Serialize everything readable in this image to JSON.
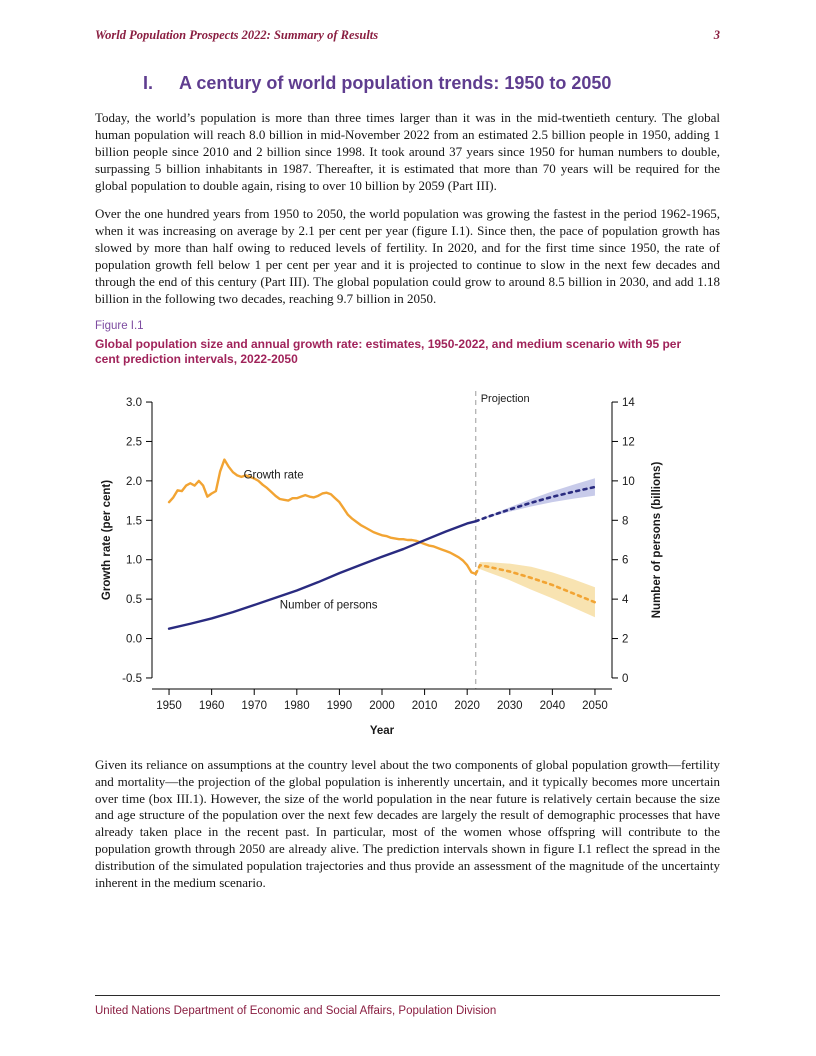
{
  "header": {
    "title": "World Population Prospects 2022: Summary of Results",
    "page_number": "3"
  },
  "section": {
    "number": "I.",
    "title": "A century of world population trends: 1950 to 2050"
  },
  "paragraphs": {
    "p1": "Today, the world’s population is more than three times larger than it was in the mid-twentieth century. The global human population will reach 8.0 billion in mid-November 2022 from an estimated 2.5 billion people in 1950, adding 1 billion people since 2010 and 2 billion since 1998. It took around 37 years since 1950 for human numbers to double, surpassing 5 billion inhabitants in 1987. Thereafter, it is estimated that more than 70 years will be required for the global population to double again, rising to over 10 billion by 2059 (Part III).",
    "p2": "Over the one hundred years from 1950 to 2050, the world population was growing the fastest in the period 1962-1965, when it was increasing on average by 2.1 per cent per year (figure I.1). Since then, the pace of population growth has slowed by more than half owing to reduced levels of fertility. In 2020, and for the first time since 1950, the rate of population growth fell below 1 per cent per year and it is projected to continue to slow in the next few decades and through the end of this century (Part III). The global population could grow to around 8.5 billion in 2030, and add 1.18 billion in the following two decades, reaching 9.7 billion in 2050.",
    "p3": "Given its reliance on assumptions at the country level about the two components of global population growth—fertility and mortality—the projection of the global population is inherently uncertain, and it typically becomes more uncertain over time (box III.1). However, the size of the world population in the near future is relatively certain because the size and age structure of the population over the next few decades are largely the result of demographic processes that have already taken place in the recent past. In particular, most of the women whose offspring will contribute to the population growth through 2050 are already alive. The prediction intervals shown in figure I.1 reflect the spread in the distribution of the simulated population trajectories and thus provide an assessment of the magnitude of the uncertainty inherent in the medium scenario."
  },
  "figure": {
    "label": "Figure I.1",
    "caption": "Global population size and annual growth rate: estimates, 1950-2022, and medium scenario with 95 per cent prediction intervals, 2022-2050"
  },
  "footer": {
    "text": "United Nations Department of Economic and Social Affairs, Population Division"
  },
  "colors": {
    "maroon_header": "#8A1E41",
    "purple_heading": "#5F3D8F",
    "figure_label_purple": "#7D4BA0",
    "figure_caption_red": "#A0235A",
    "growth_rate_orange": "#F2A433",
    "growth_band_orange": "#F7E0A9",
    "population_navy": "#2A2B80",
    "population_band_blue": "#C2C5E8",
    "projection_gray": "#9C9C9C"
  },
  "chart_data": {
    "type": "line",
    "title": "",
    "xlabel": "Year",
    "ylabel_left": "Growth rate (per cent)",
    "ylabel_right": "Number of persons (billions)",
    "x_range": [
      1950,
      2050
    ],
    "y_left_range": [
      -0.5,
      3.0
    ],
    "y_right_range": [
      0,
      14
    ],
    "x_ticks": [
      "1950",
      "1960",
      "1970",
      "1980",
      "1990",
      "2000",
      "2010",
      "2020",
      "2030",
      "2040",
      "2050"
    ],
    "y_left_ticks": [
      "-0.5",
      "0.0",
      "0.5",
      "1.0",
      "1.5",
      "2.0",
      "2.5",
      "3.0"
    ],
    "y_right_ticks": [
      "0",
      "2",
      "4",
      "6",
      "8",
      "10",
      "12",
      "14"
    ],
    "grid": false,
    "legend_position": "none",
    "projection_year": 2022,
    "projection_label": "Projection",
    "annotations": [
      {
        "text": "Growth rate",
        "x": 1967.5,
        "y": 2.03,
        "axis": "left"
      },
      {
        "text": "Number of persons",
        "x": 1976,
        "y": 0.38,
        "axis": "left"
      }
    ],
    "series": [
      {
        "key": "growth-rate-interval",
        "name": "Growth rate 95% prediction interval",
        "axis": "left",
        "style": "band",
        "color": "#F7E0A9",
        "x": [
          2022,
          2023,
          2025,
          2030,
          2035,
          2040,
          2045,
          2050
        ],
        "lower": [
          0.82,
          0.88,
          0.84,
          0.74,
          0.62,
          0.51,
          0.39,
          0.27
        ],
        "upper": [
          0.82,
          0.97,
          0.97,
          0.95,
          0.91,
          0.84,
          0.75,
          0.65
        ]
      },
      {
        "key": "population-interval",
        "name": "Population 95% prediction interval",
        "axis": "right",
        "style": "band",
        "color": "#C2C5E8",
        "x": [
          2022,
          2025,
          2030,
          2035,
          2040,
          2045,
          2050
        ],
        "lower": [
          7.95,
          8.15,
          8.44,
          8.7,
          8.92,
          9.1,
          9.25
        ],
        "upper": [
          7.95,
          8.23,
          8.66,
          9.08,
          9.47,
          9.81,
          10.13
        ]
      },
      {
        "key": "growth-rate-estimates",
        "name": "Growth rate (estimates)",
        "axis": "left",
        "style": "solid",
        "color": "#F2A433",
        "x": [
          1950,
          1951,
          1952,
          1953,
          1954,
          1955,
          1956,
          1957,
          1958,
          1959,
          1960,
          1961,
          1962,
          1963,
          1964,
          1965,
          1966,
          1967,
          1968,
          1969,
          1970,
          1971,
          1972,
          1973,
          1974,
          1975,
          1976,
          1977,
          1978,
          1979,
          1980,
          1981,
          1982,
          1983,
          1984,
          1985,
          1986,
          1987,
          1988,
          1989,
          1990,
          1991,
          1992,
          1993,
          1994,
          1995,
          1996,
          1997,
          1998,
          1999,
          2000,
          2001,
          2002,
          2003,
          2004,
          2005,
          2006,
          2007,
          2008,
          2009,
          2010,
          2011,
          2012,
          2013,
          2014,
          2015,
          2016,
          2017,
          2018,
          2019,
          2020,
          2021,
          2022
        ],
        "y": [
          1.73,
          1.79,
          1.88,
          1.87,
          1.94,
          1.97,
          1.94,
          2.0,
          1.94,
          1.8,
          1.84,
          1.87,
          2.12,
          2.27,
          2.18,
          2.11,
          2.07,
          2.05,
          2.07,
          2.05,
          2.03,
          2.0,
          1.95,
          1.91,
          1.86,
          1.81,
          1.77,
          1.76,
          1.75,
          1.78,
          1.78,
          1.8,
          1.82,
          1.8,
          1.79,
          1.81,
          1.84,
          1.85,
          1.83,
          1.78,
          1.73,
          1.65,
          1.57,
          1.52,
          1.48,
          1.44,
          1.41,
          1.38,
          1.35,
          1.33,
          1.31,
          1.3,
          1.28,
          1.27,
          1.26,
          1.26,
          1.25,
          1.25,
          1.24,
          1.22,
          1.2,
          1.18,
          1.17,
          1.15,
          1.13,
          1.11,
          1.09,
          1.06,
          1.03,
          0.99,
          0.93,
          0.84,
          0.82
        ]
      },
      {
        "key": "growth-rate-projection",
        "name": "Growth rate (medium scenario)",
        "axis": "left",
        "style": "dashed",
        "color": "#F2A433",
        "x": [
          2022,
          2023,
          2025,
          2030,
          2035,
          2040,
          2045,
          2050
        ],
        "y": [
          0.82,
          0.93,
          0.91,
          0.85,
          0.77,
          0.68,
          0.57,
          0.46
        ]
      },
      {
        "key": "population-estimates",
        "name": "Number of persons (estimates)",
        "axis": "right",
        "style": "solid",
        "color": "#2A2B80",
        "x": [
          1950,
          1955,
          1960,
          1965,
          1970,
          1975,
          1980,
          1985,
          1990,
          1995,
          2000,
          2005,
          2010,
          2015,
          2020,
          2022
        ],
        "y": [
          2.5,
          2.75,
          3.02,
          3.34,
          3.7,
          4.07,
          4.44,
          4.86,
          5.32,
          5.74,
          6.15,
          6.54,
          6.99,
          7.43,
          7.84,
          7.95
        ]
      },
      {
        "key": "population-projection",
        "name": "Number of persons (medium scenario)",
        "axis": "right",
        "style": "dashed",
        "color": "#2A2B80",
        "x": [
          2022,
          2025,
          2030,
          2035,
          2040,
          2045,
          2050
        ],
        "y": [
          7.95,
          8.19,
          8.55,
          8.89,
          9.19,
          9.45,
          9.69
        ]
      }
    ]
  }
}
